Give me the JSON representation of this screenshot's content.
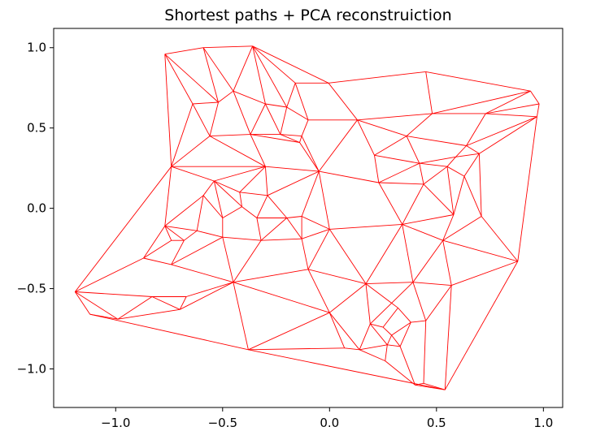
{
  "chart_data": {
    "type": "line",
    "title": "Shortest paths + PCA reconstruiction",
    "xlabel": "",
    "ylabel": "",
    "xlim": [
      -1.29,
      1.09
    ],
    "ylim": [
      -1.24,
      1.12
    ],
    "xticks": [
      -1.0,
      -0.5,
      0.0,
      0.5,
      1.0
    ],
    "xtick_labels": [
      "−1.0",
      "−0.5",
      "0.0",
      "0.5",
      "1.0"
    ],
    "yticks": [
      1.0,
      0.5,
      0.0,
      -0.5,
      -1.0
    ],
    "ytick_labels": [
      "1.0",
      "0.5",
      "0.0",
      "−0.5",
      "−1.0"
    ],
    "grid": false,
    "legend": "none",
    "edge_color": "#ff0000",
    "nodes": [
      [
        -0.77,
        0.96
      ],
      [
        -0.59,
        1.0
      ],
      [
        -0.36,
        1.01
      ],
      [
        -0.005,
        0.78
      ],
      [
        0.45,
        0.85
      ],
      [
        0.94,
        0.73
      ],
      [
        0.98,
        0.65
      ],
      [
        0.97,
        0.57
      ],
      [
        -0.74,
        0.26
      ],
      [
        -0.64,
        0.65
      ],
      [
        -0.52,
        0.66
      ],
      [
        -0.45,
        0.73
      ],
      [
        -0.3,
        0.65
      ],
      [
        -0.16,
        0.78
      ],
      [
        -0.2,
        0.63
      ],
      [
        -0.1,
        0.55
      ],
      [
        -0.14,
        0.41
      ],
      [
        -0.23,
        0.46
      ],
      [
        -0.37,
        0.46
      ],
      [
        -0.56,
        0.45
      ],
      [
        -0.13,
        0.45
      ],
      [
        0.13,
        0.55
      ],
      [
        0.21,
        0.33
      ],
      [
        0.36,
        0.45
      ],
      [
        0.48,
        0.59
      ],
      [
        0.73,
        0.59
      ],
      [
        0.64,
        0.39
      ],
      [
        0.7,
        0.34
      ],
      [
        0.59,
        0.32
      ],
      [
        -0.05,
        0.23
      ],
      [
        -0.3,
        0.26
      ],
      [
        0.23,
        0.16
      ],
      [
        0.44,
        0.15
      ],
      [
        0.42,
        0.28
      ],
      [
        0.55,
        0.26
      ],
      [
        0.63,
        0.2
      ],
      [
        0.58,
        -0.04
      ],
      [
        0.71,
        -0.05
      ],
      [
        -0.54,
        0.17
      ],
      [
        -0.42,
        0.1
      ],
      [
        -0.29,
        0.08
      ],
      [
        -0.41,
        0.01
      ],
      [
        -0.34,
        -0.06
      ],
      [
        -0.2,
        -0.06
      ],
      [
        -0.13,
        -0.05
      ],
      [
        -0.59,
        0.08
      ],
      [
        -0.77,
        -0.11
      ],
      [
        -0.5,
        -0.18
      ],
      [
        -0.62,
        -0.14
      ],
      [
        -0.68,
        -0.2
      ],
      [
        -0.74,
        -0.2
      ],
      [
        -0.5,
        -0.06
      ],
      [
        -0.32,
        -0.2
      ],
      [
        -0.13,
        -0.19
      ],
      [
        0.0,
        -0.13
      ],
      [
        0.34,
        -0.1
      ],
      [
        0.53,
        -0.2
      ],
      [
        0.88,
        -0.33
      ],
      [
        -0.87,
        -0.31
      ],
      [
        -0.74,
        -0.35
      ],
      [
        -0.45,
        -0.46
      ],
      [
        -0.1,
        -0.38
      ],
      [
        0.17,
        -0.47
      ],
      [
        0.39,
        -0.46
      ],
      [
        0.57,
        -0.48
      ],
      [
        -1.19,
        -0.52
      ],
      [
        -1.12,
        -0.66
      ],
      [
        -0.83,
        -0.55
      ],
      [
        -0.67,
        -0.55
      ],
      [
        -0.99,
        -0.69
      ],
      [
        -0.7,
        -0.63
      ],
      [
        -0.0,
        -0.65
      ],
      [
        0.29,
        -0.59
      ],
      [
        0.32,
        -0.62
      ],
      [
        0.38,
        -0.71
      ],
      [
        0.45,
        -0.7
      ],
      [
        0.19,
        -0.72
      ],
      [
        0.25,
        -0.74
      ],
      [
        0.29,
        -0.79
      ],
      [
        0.27,
        -0.85
      ],
      [
        0.14,
        -0.88
      ],
      [
        0.07,
        -0.87
      ],
      [
        -0.38,
        -0.88
      ],
      [
        0.4,
        -1.1
      ],
      [
        0.44,
        -1.09
      ],
      [
        0.54,
        -1.13
      ],
      [
        0.26,
        -0.95
      ],
      [
        0.33,
        -0.86
      ]
    ],
    "edges": [
      [
        0,
        1
      ],
      [
        1,
        2
      ],
      [
        2,
        3
      ],
      [
        3,
        4
      ],
      [
        4,
        5
      ],
      [
        5,
        6
      ],
      [
        6,
        7
      ],
      [
        0,
        8
      ],
      [
        0,
        9
      ],
      [
        0,
        10
      ],
      [
        1,
        10
      ],
      [
        1,
        11
      ],
      [
        2,
        11
      ],
      [
        2,
        12
      ],
      [
        2,
        13
      ],
      [
        2,
        14
      ],
      [
        3,
        13
      ],
      [
        3,
        21
      ],
      [
        4,
        24
      ],
      [
        5,
        24
      ],
      [
        5,
        25
      ],
      [
        6,
        25
      ],
      [
        7,
        25
      ],
      [
        7,
        26
      ],
      [
        7,
        27
      ],
      [
        7,
        57
      ],
      [
        8,
        9
      ],
      [
        9,
        10
      ],
      [
        10,
        11
      ],
      [
        11,
        12
      ],
      [
        12,
        14
      ],
      [
        13,
        14
      ],
      [
        14,
        15
      ],
      [
        13,
        15
      ],
      [
        15,
        21
      ],
      [
        10,
        19
      ],
      [
        9,
        19
      ],
      [
        11,
        18
      ],
      [
        12,
        18
      ],
      [
        12,
        17
      ],
      [
        14,
        17
      ],
      [
        17,
        18
      ],
      [
        18,
        19
      ],
      [
        15,
        20
      ],
      [
        16,
        20
      ],
      [
        16,
        17
      ],
      [
        20,
        17
      ],
      [
        18,
        16
      ],
      [
        19,
        8
      ],
      [
        19,
        30
      ],
      [
        18,
        30
      ],
      [
        16,
        29
      ],
      [
        20,
        29
      ],
      [
        21,
        29
      ],
      [
        21,
        22
      ],
      [
        21,
        23
      ],
      [
        21,
        24
      ],
      [
        23,
        24
      ],
      [
        24,
        25
      ],
      [
        25,
        26
      ],
      [
        22,
        23
      ],
      [
        23,
        26
      ],
      [
        26,
        27
      ],
      [
        26,
        28
      ],
      [
        27,
        28
      ],
      [
        22,
        33
      ],
      [
        23,
        33
      ],
      [
        28,
        33
      ],
      [
        28,
        34
      ],
      [
        27,
        35
      ],
      [
        34,
        35
      ],
      [
        33,
        34
      ],
      [
        22,
        31
      ],
      [
        31,
        33
      ],
      [
        31,
        32
      ],
      [
        32,
        33
      ],
      [
        32,
        34
      ],
      [
        34,
        36
      ],
      [
        35,
        36
      ],
      [
        27,
        37
      ],
      [
        35,
        37
      ],
      [
        8,
        30
      ],
      [
        29,
        30
      ],
      [
        29,
        31
      ],
      [
        8,
        38
      ],
      [
        30,
        38
      ],
      [
        30,
        39
      ],
      [
        30,
        40
      ],
      [
        38,
        39
      ],
      [
        39,
        40
      ],
      [
        29,
        40
      ],
      [
        29,
        44
      ],
      [
        29,
        54
      ],
      [
        38,
        45
      ],
      [
        38,
        41
      ],
      [
        39,
        41
      ],
      [
        40,
        42
      ],
      [
        41,
        42
      ],
      [
        40,
        43
      ],
      [
        42,
        43
      ],
      [
        43,
        44
      ],
      [
        44,
        54
      ],
      [
        8,
        46
      ],
      [
        45,
        46
      ],
      [
        45,
        48
      ],
      [
        45,
        51
      ],
      [
        38,
        51
      ],
      [
        41,
        51
      ],
      [
        46,
        48
      ],
      [
        46,
        49
      ],
      [
        46,
        50
      ],
      [
        48,
        49
      ],
      [
        48,
        47
      ],
      [
        51,
        47
      ],
      [
        49,
        50
      ],
      [
        47,
        52
      ],
      [
        42,
        52
      ],
      [
        43,
        52
      ],
      [
        43,
        53
      ],
      [
        44,
        53
      ],
      [
        52,
        53
      ],
      [
        53,
        54
      ],
      [
        54,
        55
      ],
      [
        31,
        55
      ],
      [
        32,
        55
      ],
      [
        32,
        36
      ],
      [
        36,
        55
      ],
      [
        36,
        56
      ],
      [
        37,
        56
      ],
      [
        37,
        57
      ],
      [
        56,
        57
      ],
      [
        55,
        56
      ],
      [
        50,
        58
      ],
      [
        46,
        58
      ],
      [
        58,
        59
      ],
      [
        59,
        49
      ],
      [
        59,
        47
      ],
      [
        58,
        65
      ],
      [
        59,
        60
      ],
      [
        47,
        60
      ],
      [
        52,
        60
      ],
      [
        53,
        61
      ],
      [
        54,
        61
      ],
      [
        60,
        61
      ],
      [
        61,
        62
      ],
      [
        54,
        62
      ],
      [
        55,
        62
      ],
      [
        55,
        63
      ],
      [
        56,
        63
      ],
      [
        56,
        64
      ],
      [
        57,
        64
      ],
      [
        63,
        64
      ],
      [
        62,
        63
      ],
      [
        8,
        65
      ],
      [
        65,
        66
      ],
      [
        65,
        67
      ],
      [
        65,
        69
      ],
      [
        66,
        69
      ],
      [
        66,
        82
      ],
      [
        67,
        69
      ],
      [
        67,
        68
      ],
      [
        67,
        70
      ],
      [
        68,
        70
      ],
      [
        69,
        70
      ],
      [
        68,
        60
      ],
      [
        60,
        70
      ],
      [
        60,
        82
      ],
      [
        60,
        71
      ],
      [
        61,
        71
      ],
      [
        62,
        71
      ],
      [
        71,
        82
      ],
      [
        71,
        81
      ],
      [
        71,
        80
      ],
      [
        62,
        72
      ],
      [
        62,
        76
      ],
      [
        63,
        72
      ],
      [
        72,
        73
      ],
      [
        73,
        74
      ],
      [
        74,
        75
      ],
      [
        63,
        75
      ],
      [
        64,
        75
      ],
      [
        73,
        77
      ],
      [
        76,
        77
      ],
      [
        77,
        78
      ],
      [
        78,
        79
      ],
      [
        76,
        79
      ],
      [
        79,
        80
      ],
      [
        80,
        81
      ],
      [
        81,
        82
      ],
      [
        82,
        85
      ],
      [
        79,
        86
      ],
      [
        86,
        83
      ],
      [
        83,
        87
      ],
      [
        87,
        79
      ],
      [
        78,
        87
      ],
      [
        74,
        87
      ],
      [
        75,
        84
      ],
      [
        84,
        85
      ],
      [
        83,
        85
      ],
      [
        83,
        84
      ],
      [
        64,
        85
      ],
      [
        57,
        85
      ],
      [
        76,
        80
      ],
      [
        72,
        76
      ],
      [
        74,
        78
      ],
      [
        86,
        80
      ]
    ]
  }
}
